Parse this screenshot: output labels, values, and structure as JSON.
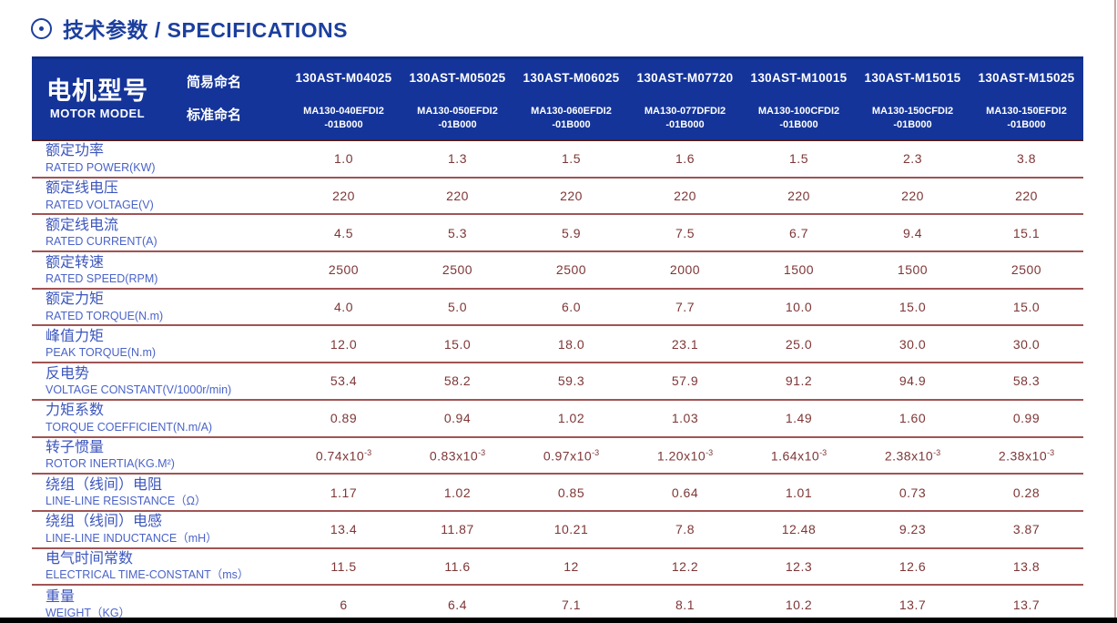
{
  "page": {
    "title": "技术参数 / SPECIFICATIONS"
  },
  "colors": {
    "title_blue": "#1c3f9e",
    "header_background": "#143499",
    "header_text": "#ffffff",
    "row_label_blue": "#3c56bd",
    "value_maroon": "#7e3636",
    "separator_line": "#a05454"
  },
  "table": {
    "model_header": {
      "zh": "电机型号",
      "en": "MOTOR MODEL",
      "simple_label": "简易命名",
      "standard_label": "标准命名"
    },
    "columns": [
      {
        "simple": "130AST-M04025",
        "standard": [
          "MA130-040EFDI2",
          "-01B000"
        ]
      },
      {
        "simple": "130AST-M05025",
        "standard": [
          "MA130-050EFDI2",
          "-01B000"
        ]
      },
      {
        "simple": "130AST-M06025",
        "standard": [
          "MA130-060EFDI2",
          "-01B000"
        ]
      },
      {
        "simple": "130AST-M07720",
        "standard": [
          "MA130-077DFDI2",
          "-01B000"
        ]
      },
      {
        "simple": "130AST-M10015",
        "standard": [
          "MA130-100CFDI2",
          "-01B000"
        ]
      },
      {
        "simple": "130AST-M15015",
        "standard": [
          "MA130-150CFDI2",
          "-01B000"
        ]
      },
      {
        "simple": "130AST-M15025",
        "standard": [
          "MA130-150EFDI2",
          "-01B000"
        ]
      }
    ],
    "rows": [
      {
        "zh": "额定功率",
        "en": "RATED POWER(KW)",
        "values": [
          "1.0",
          "1.3",
          "1.5",
          "1.6",
          "1.5",
          "2.3",
          "3.8"
        ]
      },
      {
        "zh": "额定线电压",
        "en": "RATED VOLTAGE(V)",
        "values": [
          "220",
          "220",
          "220",
          "220",
          "220",
          "220",
          "220"
        ]
      },
      {
        "zh": "额定线电流",
        "en": "RATED CURRENT(A)",
        "values": [
          "4.5",
          "5.3",
          "5.9",
          "7.5",
          "6.7",
          "9.4",
          "15.1"
        ]
      },
      {
        "zh": "额定转速",
        "en": "RATED SPEED(RPM)",
        "values": [
          "2500",
          "2500",
          "2500",
          "2000",
          "1500",
          "1500",
          "2500"
        ]
      },
      {
        "zh": "额定力矩",
        "en": "RATED TORQUE(N.m)",
        "values": [
          "4.0",
          "5.0",
          "6.0",
          "7.7",
          "10.0",
          "15.0",
          "15.0"
        ]
      },
      {
        "zh": "峰值力矩",
        "en": "PEAK TORQUE(N.m)",
        "values": [
          "12.0",
          "15.0",
          "18.0",
          "23.1",
          "25.0",
          "30.0",
          "30.0"
        ]
      },
      {
        "zh": "反电势",
        "en": "VOLTAGE CONSTANT(V/1000r/min)",
        "values": [
          "53.4",
          "58.2",
          "59.3",
          "57.9",
          "91.2",
          "94.9",
          "58.3"
        ]
      },
      {
        "zh": "力矩系数",
        "en": "TORQUE COEFFICIENT(N.m/A)",
        "values": [
          "0.89",
          "0.94",
          "1.02",
          "1.03",
          "1.49",
          "1.60",
          "0.99"
        ]
      },
      {
        "zh": "转子惯量",
        "en": "ROTOR INERTIA(KG.M²)",
        "values": [
          "0.74x10^-3",
          "0.83x10^-3",
          "0.97x10^-3",
          "1.20x10^-3",
          "1.64x10^-3",
          "2.38x10^-3",
          "2.38x10^-3"
        ]
      },
      {
        "zh": "绕组（线间）电阻",
        "en": "LINE-LINE RESISTANCE（Ω）",
        "values": [
          "1.17",
          "1.02",
          "0.85",
          "0.64",
          "1.01",
          "0.73",
          "0.28"
        ]
      },
      {
        "zh": "绕组（线间）电感",
        "en": "LINE-LINE INDUCTANCE（mH）",
        "values": [
          "13.4",
          "11.87",
          "10.21",
          "7.8",
          "12.48",
          "9.23",
          "3.87"
        ]
      },
      {
        "zh": "电气时间常数",
        "en": "ELECTRICAL TIME-CONSTANT（ms）",
        "values": [
          "11.5",
          "11.6",
          "12",
          "12.2",
          "12.3",
          "12.6",
          "13.8"
        ]
      },
      {
        "zh": "重量",
        "en": "WEIGHT（KG）",
        "values": [
          "6",
          "6.4",
          "7.1",
          "8.1",
          "10.2",
          "13.7",
          "13.7"
        ]
      }
    ]
  }
}
